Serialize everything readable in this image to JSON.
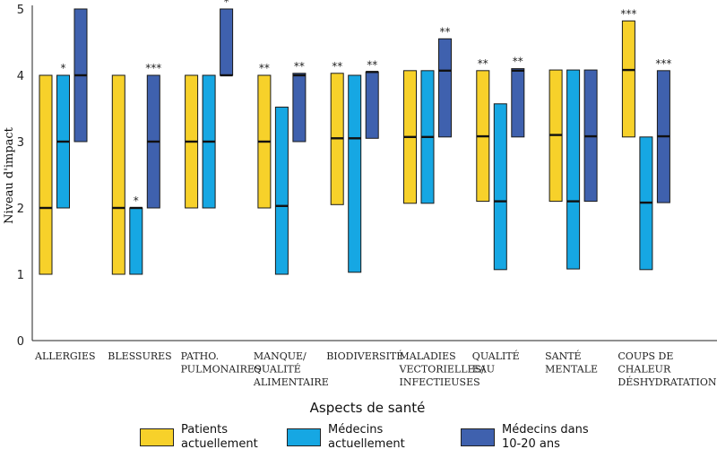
{
  "chart_data": {
    "type": "bar",
    "subtype": "floating-range",
    "title": "",
    "xlabel": "Aspects de santé",
    "ylabel": "Niveau d'impact",
    "ylim": [
      0,
      5
    ],
    "yticks": [
      "0",
      "1",
      "2",
      "3",
      "4",
      "5"
    ],
    "grid": false,
    "legend_position": "bottom",
    "categories": [
      [
        "ALLERGIES"
      ],
      [
        "BLESSURES"
      ],
      [
        "PATHO.",
        "PULMONAIRES"
      ],
      [
        "MANQUE/",
        "QUALITÉ",
        "ALIMENTAIRE"
      ],
      [
        "BIODIVERSITÉ"
      ],
      [
        "MALADIES",
        "VECTORIELLES/",
        "INFECTIEUSES"
      ],
      [
        "QUALITÉ",
        "EAU"
      ],
      [
        "SANTÉ",
        "MENTALE"
      ],
      [
        "COUPS DE",
        "CHALEUR",
        "DÉSHYDRATATION"
      ]
    ],
    "series": [
      {
        "name": "Patients actuellement",
        "legend_lines": [
          "Patients",
          "actuellement"
        ],
        "color": "#F7D12A",
        "low": [
          1,
          1,
          2,
          2,
          2.05,
          2.07,
          2.1,
          2.1,
          3.07
        ],
        "median": [
          2,
          2,
          3,
          3,
          3.05,
          3.07,
          3.08,
          3.1,
          4.08
        ],
        "high": [
          4,
          4,
          4,
          4,
          4.03,
          4.07,
          4.07,
          4.08,
          4.82
        ],
        "stars": [
          "",
          "",
          "",
          "**",
          "**",
          "",
          "**",
          "",
          "***"
        ]
      },
      {
        "name": "Médecins actuellement",
        "legend_lines": [
          "Médecins",
          "actuellement"
        ],
        "color": "#16A7E3",
        "low": [
          2,
          1,
          2,
          1,
          1.03,
          2.07,
          1.07,
          1.08,
          1.07
        ],
        "median": [
          3,
          2,
          3,
          2.03,
          3.05,
          3.07,
          2.1,
          2.1,
          2.08
        ],
        "high": [
          4,
          2,
          4,
          3.52,
          4,
          4.07,
          3.57,
          4.08,
          3.07
        ],
        "stars": [
          "*",
          "*",
          "",
          "",
          "",
          "",
          "",
          "",
          ""
        ]
      },
      {
        "name": "Médecins dans 10-20 ans",
        "legend_lines": [
          "Médecins dans",
          "10-20 ans"
        ],
        "color": "#3F61AE",
        "low": [
          3,
          2,
          4,
          3,
          3.05,
          3.07,
          3.07,
          2.1,
          2.08
        ],
        "median": [
          4,
          3,
          4,
          4,
          4.05,
          4.07,
          4.07,
          3.08,
          3.08
        ],
        "high": [
          5,
          4,
          5,
          4.03,
          4.05,
          4.55,
          4.1,
          4.08,
          4.07
        ],
        "stars": [
          "",
          "***",
          "*",
          "**",
          "**",
          "**",
          "**",
          "",
          "***"
        ]
      }
    ]
  }
}
